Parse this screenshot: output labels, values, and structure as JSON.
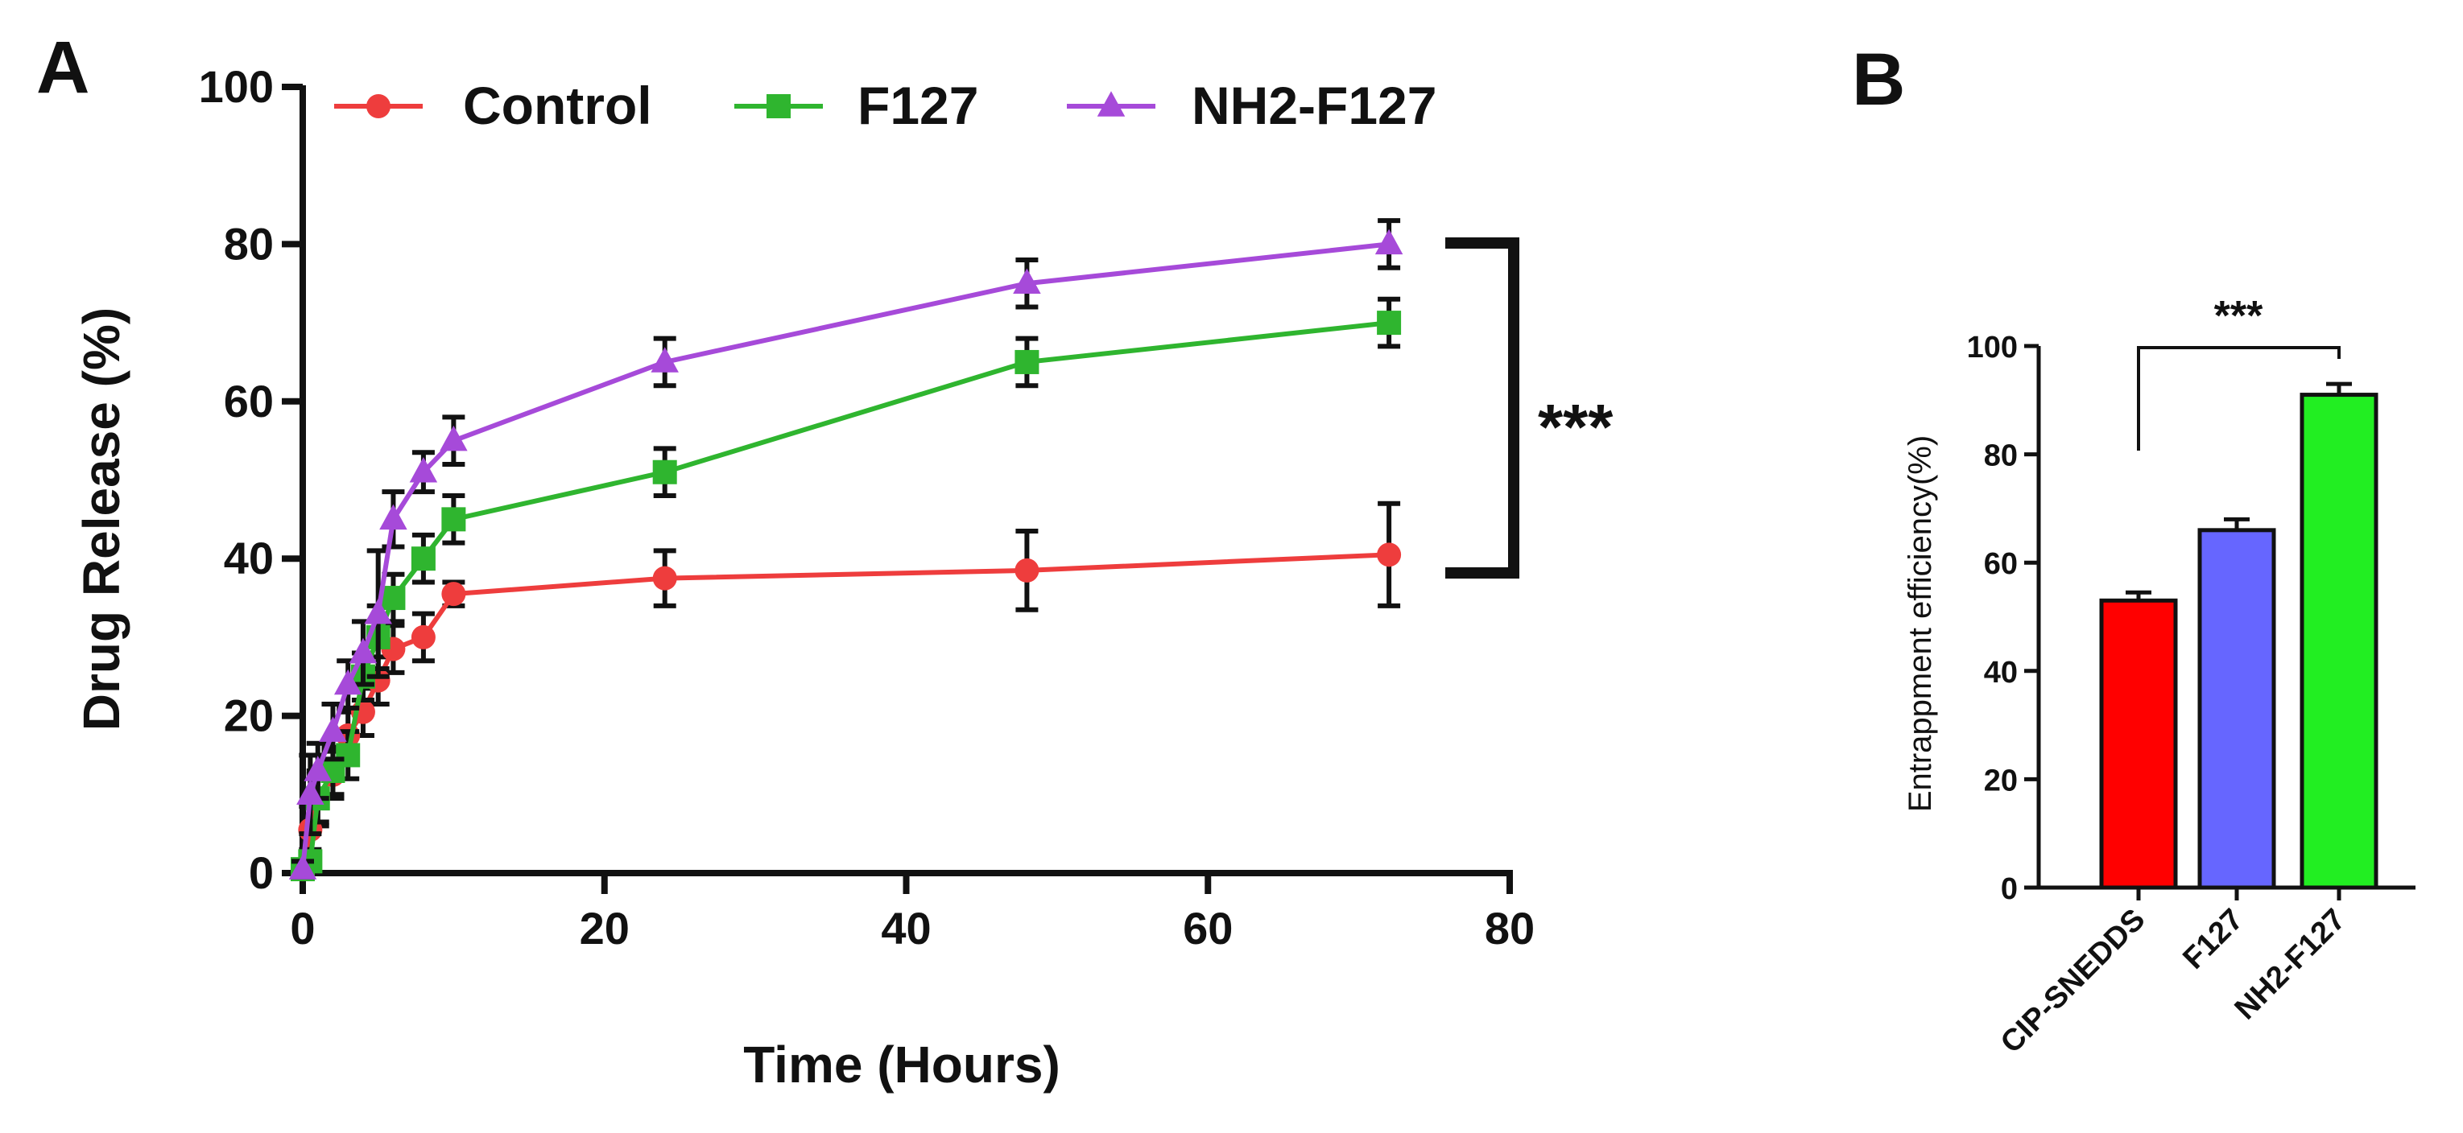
{
  "panels": {
    "a_label": "A",
    "b_label": "B"
  },
  "chart_data": [
    {
      "type": "line",
      "panel": "A",
      "xlabel": "Time (Hours)",
      "ylabel": "Drug Release (%)",
      "xlim": [
        0,
        80
      ],
      "ylim": [
        0,
        100
      ],
      "xticks": [
        "0",
        "20",
        "40",
        "60",
        "80"
      ],
      "yticks": [
        "0",
        "20",
        "40",
        "60",
        "80",
        "100"
      ],
      "legend_position": "top",
      "significance": "***",
      "significance_compares": [
        "NH2-F127",
        "Control"
      ],
      "series": [
        {
          "name": "Control",
          "color": "#ee3d3d",
          "marker": "circle",
          "points": [
            {
              "x": 0,
              "y": 0.5,
              "err": 1
            },
            {
              "x": 0.5,
              "y": 5.5,
              "err": 3
            },
            {
              "x": 1,
              "y": 9.5,
              "err": 3.5
            },
            {
              "x": 2,
              "y": 12.5,
              "err": 3
            },
            {
              "x": 3,
              "y": 17.5,
              "err": 3
            },
            {
              "x": 4,
              "y": 20.5,
              "err": 3
            },
            {
              "x": 5,
              "y": 24.5,
              "err": 3
            },
            {
              "x": 6,
              "y": 28.5,
              "err": 3
            },
            {
              "x": 8,
              "y": 30,
              "err": 3
            },
            {
              "x": 10,
              "y": 35.5,
              "err": 1.5
            },
            {
              "x": 24,
              "y": 37.5,
              "err": 3.5
            },
            {
              "x": 48,
              "y": 38.5,
              "err": 5
            },
            {
              "x": 72,
              "y": 40.5,
              "err": 6.5
            }
          ]
        },
        {
          "name": "F127",
          "color": "#2fb52f",
          "marker": "square",
          "points": [
            {
              "x": 0,
              "y": 0.5,
              "err": 1
            },
            {
              "x": 0.5,
              "y": 1.5,
              "err": 1.5
            },
            {
              "x": 1,
              "y": 9.5,
              "err": 3
            },
            {
              "x": 2,
              "y": 13,
              "err": 3
            },
            {
              "x": 3,
              "y": 15,
              "err": 3
            },
            {
              "x": 4,
              "y": 25,
              "err": 3
            },
            {
              "x": 5,
              "y": 30,
              "err": 4
            },
            {
              "x": 6,
              "y": 35,
              "err": 3
            },
            {
              "x": 8,
              "y": 40,
              "err": 3
            },
            {
              "x": 10,
              "y": 45,
              "err": 3
            },
            {
              "x": 24,
              "y": 51,
              "err": 3
            },
            {
              "x": 48,
              "y": 65,
              "err": 3
            },
            {
              "x": 72,
              "y": 70,
              "err": 3
            }
          ]
        },
        {
          "name": "NH2-F127",
          "color": "#a64ad9",
          "marker": "triangle",
          "points": [
            {
              "x": 0,
              "y": 0.5,
              "err": 1
            },
            {
              "x": 0.5,
              "y": 10,
              "err": 5
            },
            {
              "x": 1,
              "y": 13,
              "err": 3.5
            },
            {
              "x": 2,
              "y": 18,
              "err": 3.5
            },
            {
              "x": 3,
              "y": 24,
              "err": 3
            },
            {
              "x": 4,
              "y": 28,
              "err": 4
            },
            {
              "x": 5,
              "y": 33,
              "err": 8
            },
            {
              "x": 6,
              "y": 45,
              "err": 3.5
            },
            {
              "x": 8,
              "y": 51,
              "err": 2.5
            },
            {
              "x": 10,
              "y": 55,
              "err": 3
            },
            {
              "x": 24,
              "y": 65,
              "err": 3
            },
            {
              "x": 48,
              "y": 75,
              "err": 3
            },
            {
              "x": 72,
              "y": 80,
              "err": 3
            }
          ]
        }
      ]
    },
    {
      "type": "bar",
      "panel": "B",
      "ylabel": "Entrappment efficiency(%)",
      "ylim": [
        0,
        100
      ],
      "yticks": [
        "0",
        "20",
        "40",
        "60",
        "80",
        "100"
      ],
      "categories": [
        "CIP-SNEDDS",
        "F127",
        "NH2-F127"
      ],
      "values": [
        53,
        66,
        91
      ],
      "errors": [
        1.5,
        2,
        2
      ],
      "colors": [
        "#ff0000",
        "#6666ff",
        "#22ee22"
      ],
      "significance": "***",
      "significance_compares": [
        "CIP-SNEDDS",
        "NH2-F127"
      ]
    }
  ]
}
